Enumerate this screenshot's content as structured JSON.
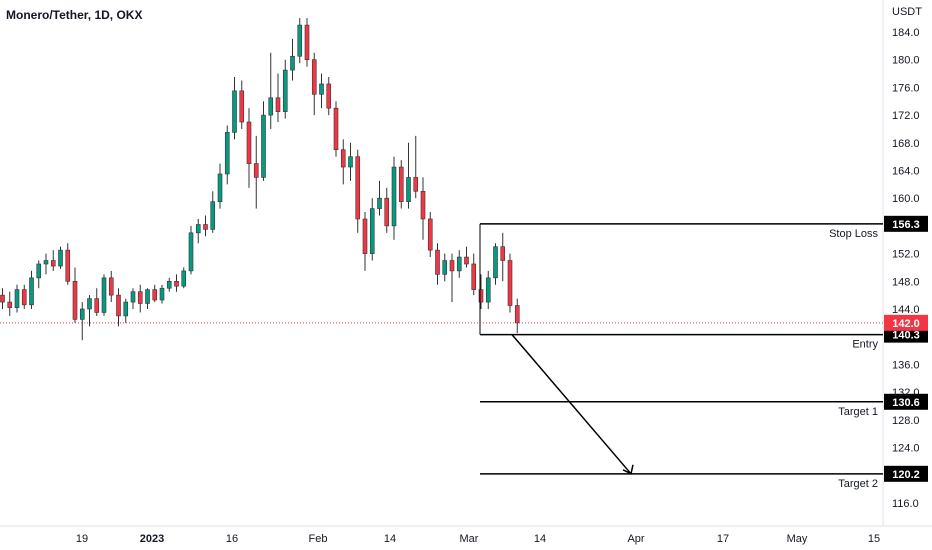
{
  "header": {
    "symbol_title": "Monero/Tether, 1D, OKX"
  },
  "price_axis": {
    "unit_label": "USDT",
    "last_price": "142.0",
    "last_price_color": "#f23645"
  },
  "colors": {
    "up": "#089981",
    "down": "#f23645",
    "line": "#000000",
    "tag_bg": "#000000"
  },
  "chart_data": {
    "type": "candlestick",
    "title": "Monero/Tether, 1D, OKX",
    "ylabel": "USDT",
    "ylim": [
      112.5,
      185.5
    ],
    "grid": false,
    "y_ticks": [
      "184.0",
      "180.0",
      "176.0",
      "172.0",
      "168.0",
      "164.0",
      "160.0",
      "152.0",
      "148.0",
      "144.0",
      "136.0",
      "132.0",
      "128.0",
      "124.0",
      "116.0"
    ],
    "x_ticks": [
      "19",
      "2023",
      "16",
      "Feb",
      "14",
      "Mar",
      "14",
      "Apr",
      "17",
      "May",
      "15"
    ],
    "candles": [
      [
        146.0,
        147.0,
        144.0,
        145.0
      ],
      [
        145.0,
        146.5,
        143.0,
        144.2
      ],
      [
        144.2,
        147.5,
        143.5,
        146.8
      ],
      [
        146.8,
        147.5,
        144.0,
        144.6
      ],
      [
        144.6,
        149.5,
        144.0,
        148.5
      ],
      [
        148.5,
        151.0,
        147.0,
        150.5
      ],
      [
        150.5,
        152.0,
        149.0,
        151.0
      ],
      [
        151.0,
        152.5,
        149.5,
        150.2
      ],
      [
        150.2,
        153.0,
        149.8,
        152.5
      ],
      [
        152.5,
        153.5,
        147.5,
        148.0
      ],
      [
        148.0,
        150.0,
        142.0,
        142.5
      ],
      [
        142.5,
        145.0,
        139.5,
        144.0
      ],
      [
        144.0,
        146.0,
        141.5,
        145.5
      ],
      [
        145.5,
        147.0,
        143.0,
        143.5
      ],
      [
        143.5,
        149.0,
        143.0,
        148.5
      ],
      [
        148.5,
        149.5,
        145.0,
        146.0
      ],
      [
        146.0,
        147.0,
        141.5,
        143.0
      ],
      [
        143.0,
        145.5,
        142.0,
        145.0
      ],
      [
        145.0,
        147.0,
        144.0,
        146.5
      ],
      [
        146.5,
        147.5,
        143.5,
        144.8
      ],
      [
        144.8,
        147.0,
        144.0,
        146.8
      ],
      [
        146.8,
        147.5,
        145.0,
        145.3
      ],
      [
        145.3,
        147.5,
        144.8,
        147.0
      ],
      [
        147.0,
        148.5,
        146.5,
        148.0
      ],
      [
        148.0,
        149.0,
        146.5,
        147.3
      ],
      [
        147.3,
        150.0,
        147.0,
        149.5
      ],
      [
        149.5,
        156.0,
        149.0,
        155.0
      ],
      [
        155.0,
        157.0,
        153.5,
        156.2
      ],
      [
        156.2,
        157.5,
        154.5,
        155.5
      ],
      [
        155.5,
        161.0,
        155.0,
        159.5
      ],
      [
        159.5,
        165.0,
        158.5,
        163.5
      ],
      [
        163.5,
        170.5,
        162.0,
        169.5
      ],
      [
        169.5,
        177.5,
        168.5,
        175.5
      ],
      [
        175.5,
        177.0,
        170.0,
        171.0
      ],
      [
        171.0,
        173.0,
        161.5,
        165.0
      ],
      [
        165.0,
        169.0,
        158.5,
        163.0
      ],
      [
        163.0,
        174.0,
        162.5,
        172.0
      ],
      [
        172.0,
        181.0,
        170.0,
        174.5
      ],
      [
        174.5,
        178.0,
        171.0,
        172.5
      ],
      [
        172.5,
        180.0,
        171.5,
        178.5
      ],
      [
        178.5,
        183.0,
        177.0,
        180.5
      ],
      [
        180.5,
        186.0,
        179.5,
        185.0
      ],
      [
        185.0,
        186.0,
        179.0,
        180.0
      ],
      [
        180.0,
        181.0,
        172.0,
        175.0
      ],
      [
        175.0,
        178.0,
        173.0,
        176.5
      ],
      [
        176.5,
        177.5,
        172.0,
        173.0
      ],
      [
        173.0,
        174.0,
        166.0,
        167.0
      ],
      [
        167.0,
        168.5,
        162.0,
        164.5
      ],
      [
        164.5,
        168.0,
        162.5,
        166.0
      ],
      [
        166.0,
        167.0,
        155.0,
        157.0
      ],
      [
        157.0,
        158.0,
        149.5,
        152.0
      ],
      [
        152.0,
        160.0,
        151.0,
        158.5
      ],
      [
        158.5,
        162.5,
        157.5,
        160.0
      ],
      [
        160.0,
        161.5,
        155.0,
        156.0
      ],
      [
        156.0,
        166.0,
        154.0,
        164.5
      ],
      [
        164.5,
        165.5,
        158.5,
        159.5
      ],
      [
        159.5,
        168.0,
        158.5,
        163.0
      ],
      [
        163.0,
        169.0,
        160.0,
        161.0
      ],
      [
        161.0,
        163.0,
        154.0,
        157.0
      ],
      [
        157.0,
        158.0,
        151.5,
        152.5
      ],
      [
        152.5,
        153.5,
        147.5,
        149.0
      ],
      [
        149.0,
        152.0,
        148.0,
        151.0
      ],
      [
        151.0,
        152.0,
        145.0,
        149.5
      ],
      [
        149.5,
        152.5,
        148.5,
        151.5
      ],
      [
        151.5,
        153.0,
        150.0,
        150.5
      ],
      [
        150.5,
        152.0,
        146.0,
        146.8
      ],
      [
        146.8,
        149.0,
        144.0,
        145.0
      ],
      [
        145.0,
        149.5,
        144.0,
        148.5
      ],
      [
        148.5,
        153.5,
        147.5,
        153.0
      ],
      [
        153.0,
        155.0,
        148.0,
        151.0
      ],
      [
        151.0,
        152.0,
        143.5,
        144.5
      ],
      [
        144.5,
        145.5,
        140.5,
        142.0
      ]
    ],
    "annotations": [
      {
        "label": "Stop Loss",
        "value": 156.3
      },
      {
        "label": "Entry",
        "value": 140.3
      },
      {
        "label": "Target 1",
        "value": 130.6
      },
      {
        "label": "Target 2",
        "value": 120.2
      }
    ],
    "projection": {
      "from_price": 140.3,
      "to_price": 120.2
    }
  }
}
